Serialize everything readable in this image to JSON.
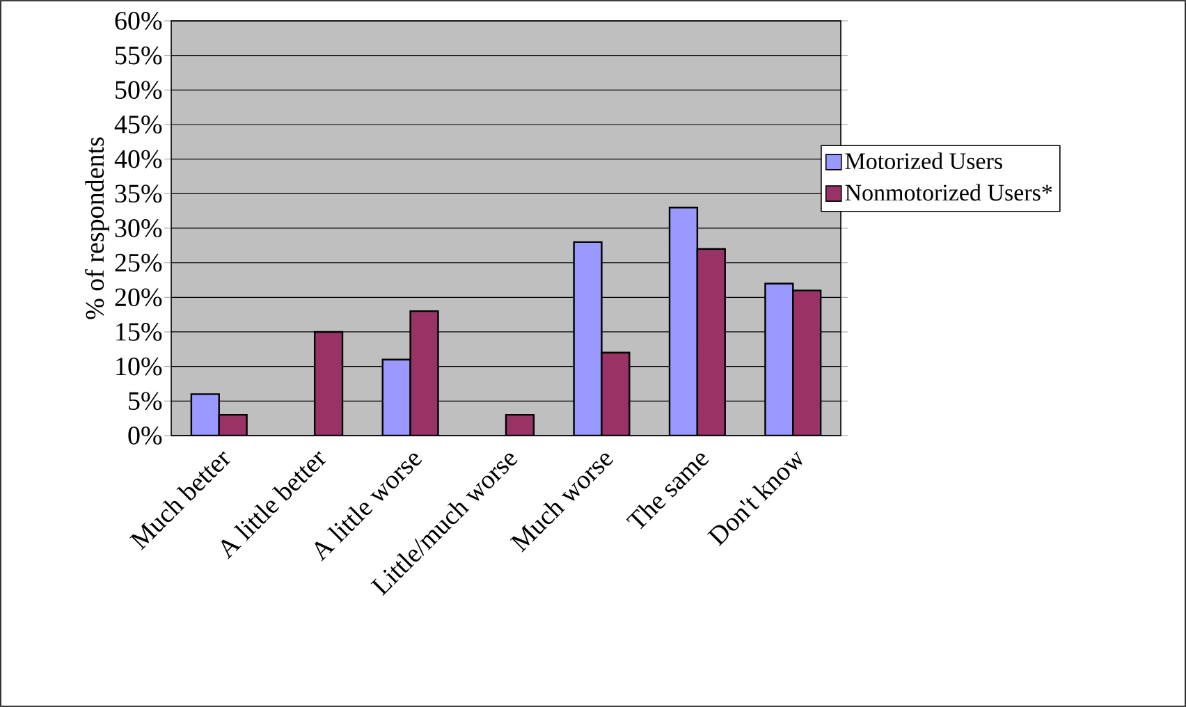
{
  "chart_data": {
    "type": "bar",
    "ylabel": "% of respondents",
    "categories": [
      "Much better",
      "A little better",
      "A little worse",
      "Little/much worse",
      "Much worse",
      "The same",
      "Don't know"
    ],
    "series": [
      {
        "name": "Motorized Users",
        "color": "#9999ff",
        "values": [
          6,
          null,
          11,
          null,
          28,
          33,
          22
        ]
      },
      {
        "name": "Nonmotorized Users*",
        "color": "#993366",
        "values": [
          3,
          15,
          18,
          3,
          12,
          27,
          21
        ]
      }
    ],
    "ylim": [
      0,
      60
    ],
    "yticks": [
      {
        "value": 0,
        "label": "0%"
      },
      {
        "value": 5,
        "label": "5%"
      },
      {
        "value": 10,
        "label": "10%"
      },
      {
        "value": 15,
        "label": "15%"
      },
      {
        "value": 20,
        "label": "20%"
      },
      {
        "value": 25,
        "label": "25%"
      },
      {
        "value": 30,
        "label": "30%"
      },
      {
        "value": 35,
        "label": "35%"
      },
      {
        "value": 40,
        "label": "40%"
      },
      {
        "value": 45,
        "label": "45%"
      },
      {
        "value": 50,
        "label": "50%"
      },
      {
        "value": 55,
        "label": "55%"
      },
      {
        "value": 60,
        "label": "60%"
      }
    ],
    "grid": "y",
    "legend": "right"
  }
}
